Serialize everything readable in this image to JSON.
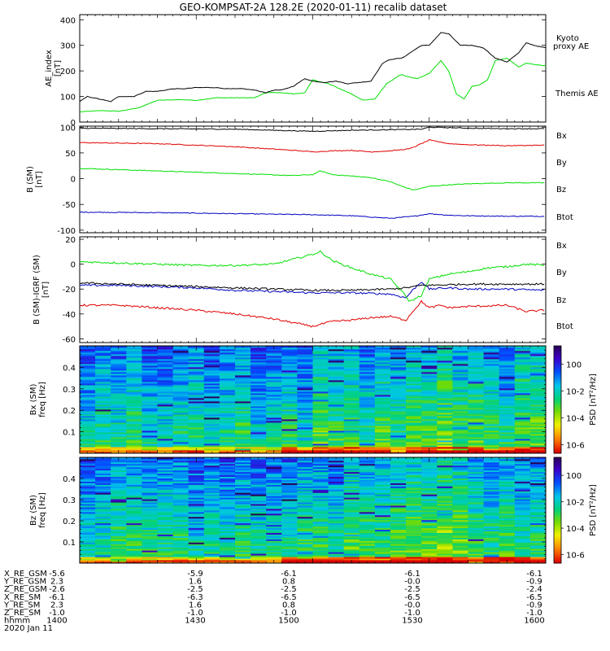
{
  "title": "GEO-KOMPSAT-2A 128.2E (2020-01-11) recalib dataset",
  "chart_data": [
    {
      "type": "line",
      "panel": "ae",
      "ylabel": "AE_index\n[nT]",
      "ylim": [
        0,
        420
      ],
      "yticks": [
        0,
        100,
        200,
        300,
        400
      ],
      "x_minutes": [
        0,
        120
      ],
      "series": [
        {
          "name": "Kyoto\nproxy AE",
          "color": "#00e000",
          "x": [
            0,
            6,
            10,
            15,
            20,
            26,
            30,
            35,
            38,
            42,
            45,
            48,
            52,
            55,
            58,
            60,
            64,
            67,
            70,
            73,
            76,
            79,
            82,
            83,
            85,
            87,
            90,
            93,
            95,
            97,
            99,
            101,
            103,
            105,
            107,
            110,
            113,
            115,
            117,
            120
          ],
          "y": [
            40,
            45,
            42,
            55,
            85,
            88,
            85,
            95,
            95,
            95,
            95,
            115,
            115,
            110,
            115,
            165,
            150,
            130,
            110,
            85,
            90,
            150,
            180,
            185,
            175,
            170,
            190,
            240,
            200,
            110,
            90,
            140,
            145,
            165,
            240,
            250,
            215,
            230,
            225,
            220
          ]
        },
        {
          "name": "Themis AE",
          "color": "#000000",
          "x": [
            0,
            2,
            5,
            8,
            10,
            14,
            17,
            20,
            24,
            27,
            30,
            35,
            38,
            42,
            45,
            48,
            50,
            52,
            55,
            58,
            60,
            63,
            66,
            69,
            72,
            75,
            78,
            80,
            83,
            86,
            88,
            90,
            93,
            95,
            98,
            101,
            104,
            107,
            110,
            113,
            115,
            117,
            120
          ],
          "y": [
            80,
            100,
            90,
            80,
            100,
            100,
            120,
            120,
            130,
            130,
            135,
            135,
            130,
            130,
            125,
            115,
            125,
            125,
            140,
            170,
            160,
            155,
            160,
            150,
            155,
            160,
            230,
            245,
            250,
            280,
            300,
            300,
            350,
            345,
            300,
            300,
            290,
            250,
            235,
            270,
            310,
            300,
            290
          ]
        }
      ],
      "legend": [
        "Kyoto",
        "proxy AE",
        "Themis AE"
      ]
    },
    {
      "type": "line",
      "panel": "b_sm",
      "ylabel": "B (SM)\n[nT]",
      "ylim": [
        -105,
        102
      ],
      "yticks": [
        -100,
        -50,
        0,
        50,
        100
      ],
      "series": [
        {
          "name": "Bx",
          "color": "#0000c0",
          "x": [
            0,
            20,
            40,
            60,
            70,
            76,
            80,
            86,
            90,
            95,
            100,
            110,
            120
          ],
          "y": [
            -65,
            -66,
            -68,
            -70,
            -72,
            -75,
            -77,
            -73,
            -68,
            -71,
            -72,
            -73,
            -73
          ]
        },
        {
          "name": "By",
          "color": "#00e000",
          "x": [
            0,
            20,
            40,
            55,
            60,
            62,
            65,
            70,
            75,
            80,
            83,
            86,
            90,
            95,
            100,
            110,
            120
          ],
          "y": [
            20,
            15,
            10,
            6,
            8,
            15,
            8,
            5,
            2,
            -6,
            -15,
            -22,
            -15,
            -12,
            -10,
            -8,
            -8
          ]
        },
        {
          "name": "Bz",
          "color": "#e00000",
          "x": [
            0,
            20,
            40,
            55,
            60,
            65,
            70,
            75,
            80,
            85,
            88,
            90,
            95,
            100,
            110,
            120
          ],
          "y": [
            70,
            68,
            62,
            55,
            52,
            54,
            55,
            52,
            54,
            58,
            68,
            75,
            68,
            66,
            64,
            65
          ]
        },
        {
          "name": "Btot",
          "color": "#000000",
          "x": [
            0,
            20,
            40,
            55,
            60,
            70,
            80,
            88,
            90,
            100,
            110,
            120
          ],
          "y": [
            98,
            97,
            96,
            93,
            92,
            94,
            95,
            96,
            100,
            98,
            97,
            97
          ]
        }
      ],
      "legend": [
        "Bx",
        "By",
        "Bz",
        "Btot"
      ]
    },
    {
      "type": "line",
      "panel": "b_igrf",
      "ylabel": "B (SM)-IGRF (SM)\n[nT]",
      "ylim": [
        -63,
        22
      ],
      "yticks": [
        -60,
        -40,
        -20,
        0,
        20
      ],
      "series": [
        {
          "name": "Bx",
          "color": "#0000c0",
          "x": [
            0,
            10,
            20,
            30,
            40,
            50,
            60,
            70,
            80,
            84,
            86,
            88,
            90,
            95,
            100,
            110,
            120
          ],
          "y": [
            -17,
            -17,
            -18,
            -19,
            -21,
            -22,
            -23,
            -23,
            -24,
            -27,
            -20,
            -14,
            -20,
            -19,
            -20,
            -20,
            -21
          ]
        },
        {
          "name": "By",
          "color": "#00e000",
          "x": [
            0,
            10,
            20,
            30,
            40,
            50,
            55,
            60,
            62,
            65,
            70,
            75,
            80,
            83,
            85,
            88,
            90,
            95,
            100,
            105,
            110,
            115,
            120
          ],
          "y": [
            2,
            1,
            0,
            -1,
            -1,
            0,
            4,
            8,
            10,
            3,
            -3,
            -8,
            -12,
            -22,
            -30,
            -25,
            -12,
            -8,
            -6,
            -3,
            -2,
            0,
            -1
          ]
        },
        {
          "name": "Bz",
          "color": "#e00000",
          "x": [
            0,
            10,
            20,
            30,
            40,
            50,
            55,
            60,
            65,
            70,
            75,
            80,
            84,
            86,
            88,
            90,
            93,
            95,
            100,
            110,
            115,
            120
          ],
          "y": [
            -33,
            -33,
            -35,
            -37,
            -40,
            -44,
            -47,
            -50,
            -46,
            -45,
            -43,
            -42,
            -45,
            -37,
            -30,
            -35,
            -33,
            -35,
            -34,
            -33,
            -38,
            -37
          ]
        },
        {
          "name": "Btot",
          "color": "#000000",
          "x": [
            0,
            10,
            20,
            30,
            40,
            50,
            60,
            70,
            80,
            84,
            88,
            90,
            100,
            110,
            120
          ],
          "y": [
            -15,
            -16,
            -17,
            -18,
            -19,
            -20,
            -21,
            -21,
            -20,
            -19,
            -17,
            -17,
            -16,
            -16,
            -16
          ]
        }
      ],
      "legend": [
        "Bx",
        "By",
        "Bz",
        "Btot"
      ]
    },
    {
      "type": "heatmap",
      "panel": "bx_spec",
      "ylabel": "Bx (SM)\nfreq [Hz]",
      "ylim": [
        0,
        0.5
      ],
      "yticks": [
        0.1,
        0.2,
        0.3,
        0.4
      ],
      "colorbar": {
        "label": "PSD [nT²/Hz]",
        "ticks": [
          "10^0",
          "10^-2",
          "10^-4",
          "10^-6"
        ]
      }
    },
    {
      "type": "heatmap",
      "panel": "bz_spec",
      "ylabel": "Bz (SM)\nfreq [Hz]",
      "ylim": [
        0,
        0.5
      ],
      "yticks": [
        0.1,
        0.2,
        0.3,
        0.4
      ],
      "colorbar": {
        "label": "PSD [nT²/Hz]",
        "ticks": [
          "10^0",
          "10^-2",
          "10^-4",
          "10^-6"
        ]
      }
    }
  ],
  "ephemeris": {
    "rows": [
      {
        "label": "X_RE_GSM",
        "values": [
          "-5.6",
          "-5.9",
          "-6.1",
          "-6.1",
          "-6.1"
        ]
      },
      {
        "label": "Y_RE_GSM",
        "values": [
          "2.3",
          "1.6",
          "0.8",
          "-0.0",
          "-0.9"
        ]
      },
      {
        "label": "Z_RE_GSM",
        "values": [
          "-2.6",
          "-2.5",
          "-2.5",
          "-2.5",
          "-2.4"
        ]
      },
      {
        "label": "X_RE_SM",
        "values": [
          "-6.1",
          "-6.3",
          "-6.5",
          "-6.5",
          "-6.5"
        ]
      },
      {
        "label": "Y_RE_SM",
        "values": [
          "2.3",
          "1.6",
          "0.8",
          "-0.0",
          "-0.9"
        ]
      },
      {
        "label": "Z_RE_SM",
        "values": [
          "-1.0",
          "-1.0",
          "-1.0",
          "-1.0",
          "-1.0"
        ]
      },
      {
        "label": "hhmm",
        "values": [
          "1400",
          "1430",
          "1500",
          "1530",
          "1600"
        ]
      }
    ],
    "date": "2020 Jan 11"
  }
}
